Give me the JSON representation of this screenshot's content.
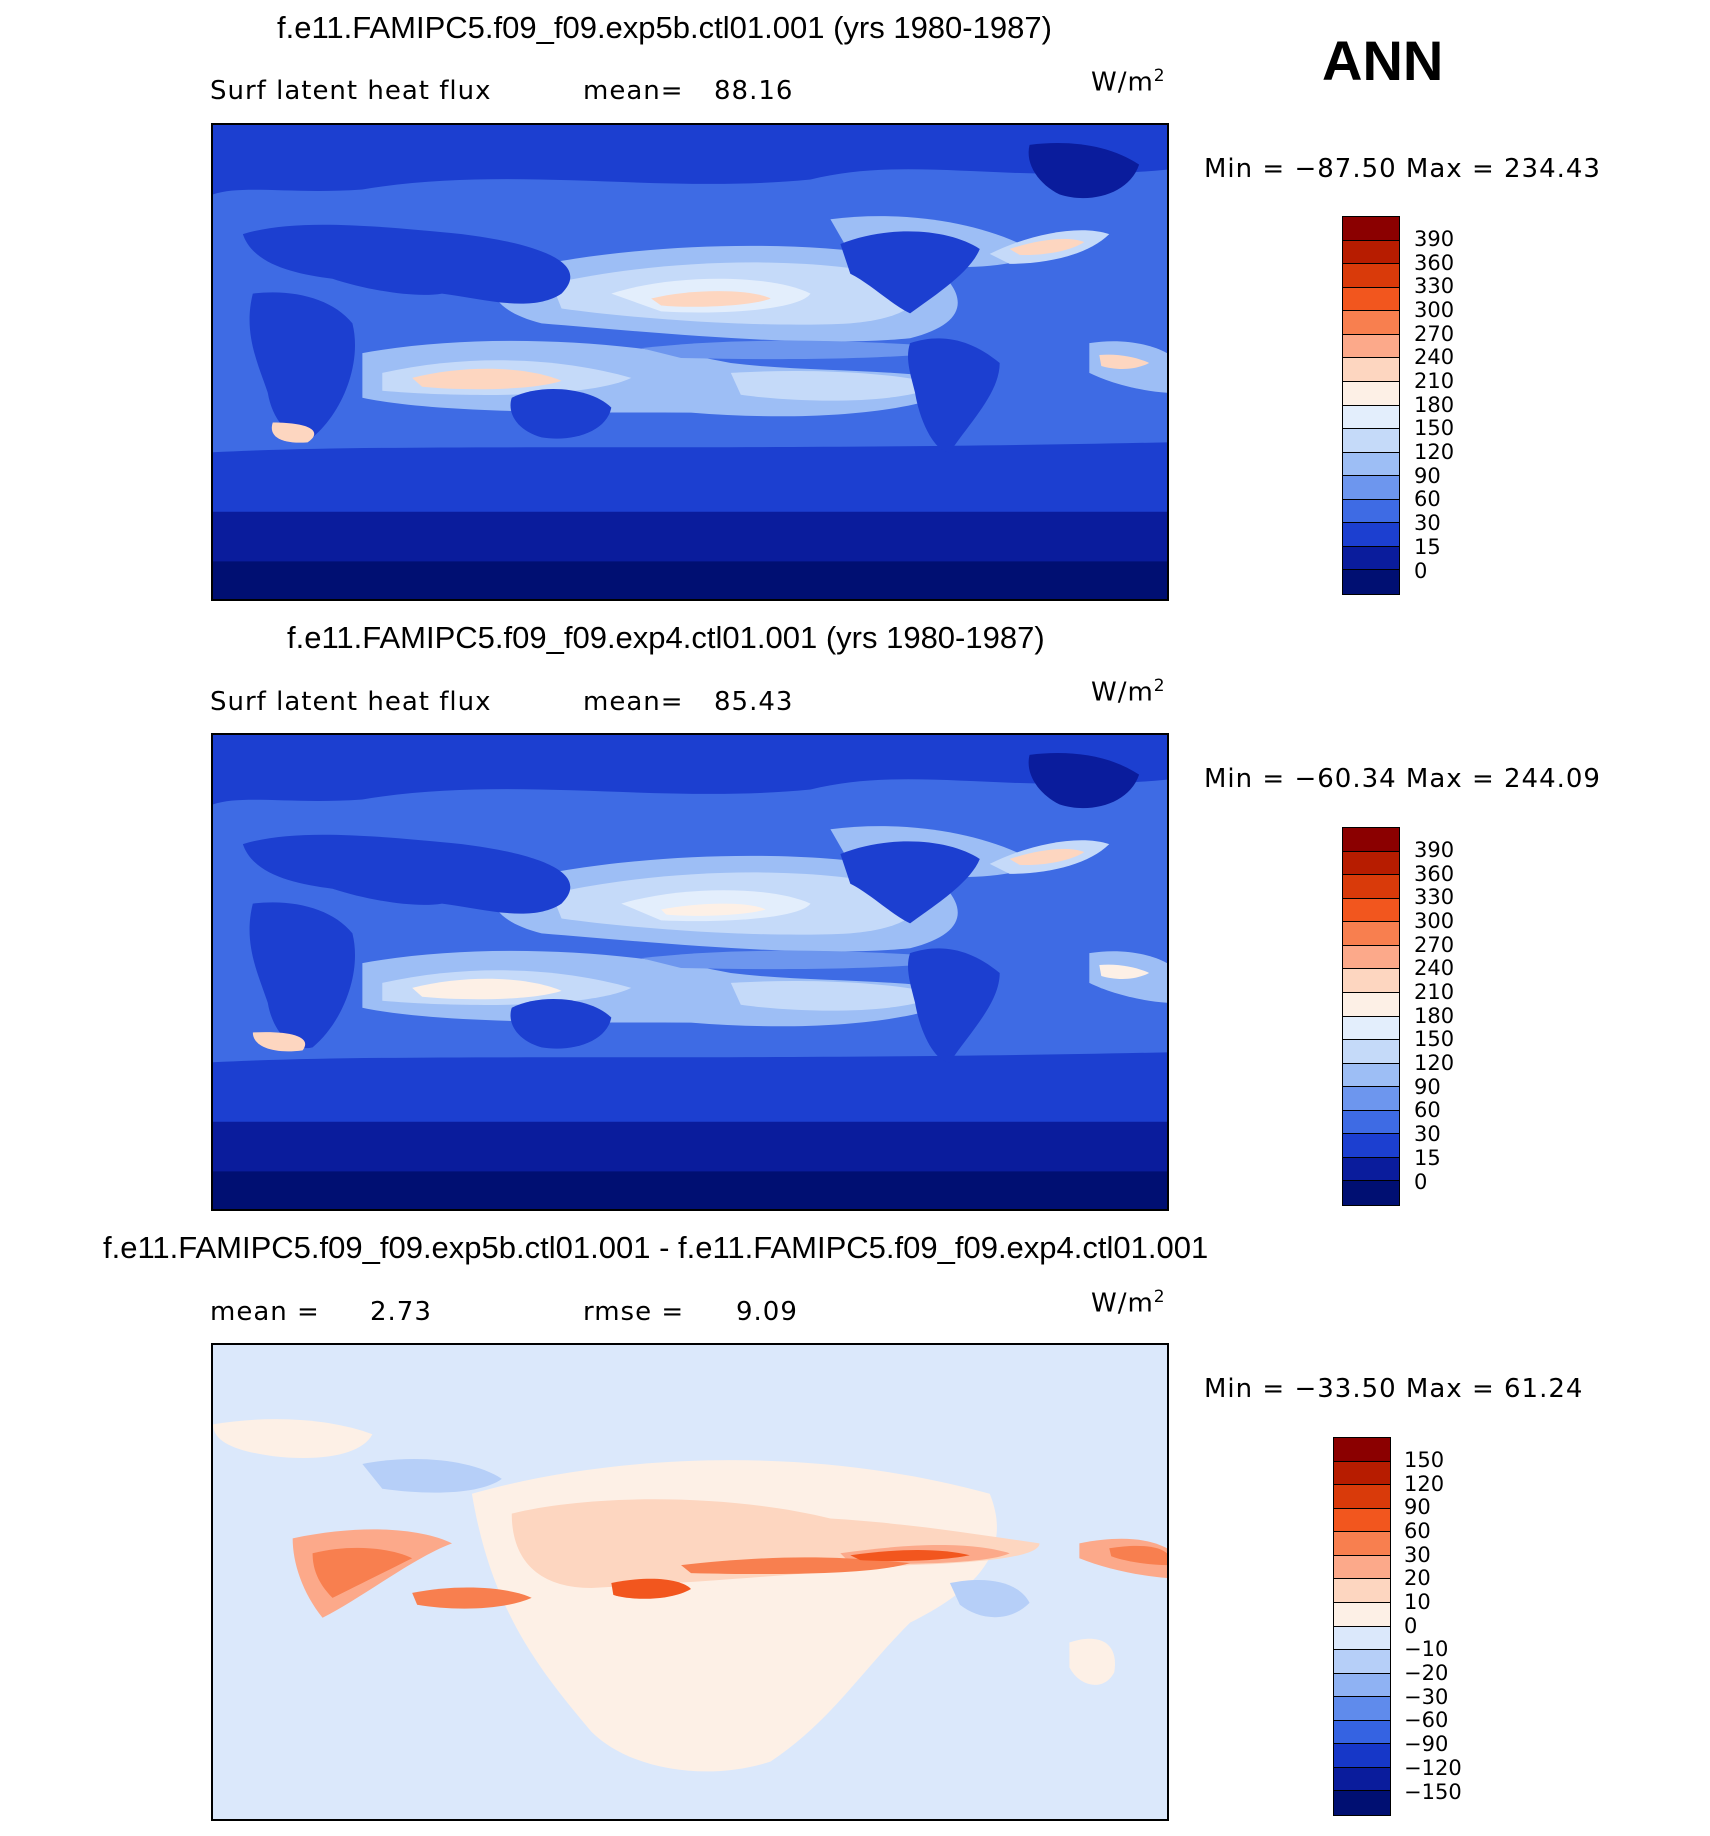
{
  "season": "ANN",
  "panels": [
    {
      "title": "f.e11.FAMIPC5.f09_f09.exp5b.ctl01.001 (yrs 1980-1987)",
      "variable": "Surf latent heat flux",
      "stat1_label": "mean=",
      "stat1_value": "88.16",
      "units": "W/m",
      "units_exp": "2",
      "minmax": "Min = −87.50 Max = 234.43",
      "colorbar": {
        "levels": [
          "390",
          "360",
          "330",
          "300",
          "270",
          "240",
          "210",
          "180",
          "150",
          "120",
          "90",
          "60",
          "30",
          "15",
          "0"
        ],
        "colors": [
          "#8b0000",
          "#b71c00",
          "#d93a0a",
          "#f2561e",
          "#f87f4f",
          "#fca98a",
          "#fdd6c0",
          "#fdf0e6",
          "#e3eefc",
          "#c5daf9",
          "#9dbef5",
          "#6d96ee",
          "#3e6be4",
          "#1c3fd0",
          "#0a1c9c",
          "#000f72"
        ]
      }
    },
    {
      "title": "f.e11.FAMIPC5.f09_f09.exp4.ctl01.001 (yrs 1980-1987)",
      "variable": "Surf latent heat flux",
      "stat1_label": "mean=",
      "stat1_value": "85.43",
      "units": "W/m",
      "units_exp": "2",
      "minmax": "Min = −60.34 Max = 244.09",
      "colorbar": {
        "levels": [
          "390",
          "360",
          "330",
          "300",
          "270",
          "240",
          "210",
          "180",
          "150",
          "120",
          "90",
          "60",
          "30",
          "15",
          "0"
        ],
        "colors": [
          "#8b0000",
          "#b71c00",
          "#d93a0a",
          "#f2561e",
          "#f87f4f",
          "#fca98a",
          "#fdd6c0",
          "#fdf0e6",
          "#e3eefc",
          "#c5daf9",
          "#9dbef5",
          "#6d96ee",
          "#3e6be4",
          "#1c3fd0",
          "#0a1c9c",
          "#000f72"
        ]
      }
    },
    {
      "title": "f.e11.FAMIPC5.f09_f09.exp5b.ctl01.001 - f.e11.FAMIPC5.f09_f09.exp4.ctl01.001",
      "variable": "",
      "stat1_label": "mean =",
      "stat1_value": "2.73",
      "stat2_label": "rmse =",
      "stat2_value": "9.09",
      "units": "W/m",
      "units_exp": "2",
      "minmax": "Min = −33.50 Max = 61.24",
      "colorbar": {
        "levels": [
          "150",
          "120",
          "90",
          "60",
          "30",
          "20",
          "10",
          "0",
          "−10",
          "−20",
          "−30",
          "−60",
          "−90",
          "−120",
          "−150"
        ],
        "colors": [
          "#8b0000",
          "#b71c00",
          "#d93a0a",
          "#f2561e",
          "#f87f4f",
          "#fca98a",
          "#fdd6c0",
          "#fdf0e6",
          "#dbe8fb",
          "#b6cff8",
          "#8fb2f3",
          "#5f8bec",
          "#3563e2",
          "#1637c8",
          "#0a1c9c",
          "#000f72"
        ]
      }
    }
  ]
}
